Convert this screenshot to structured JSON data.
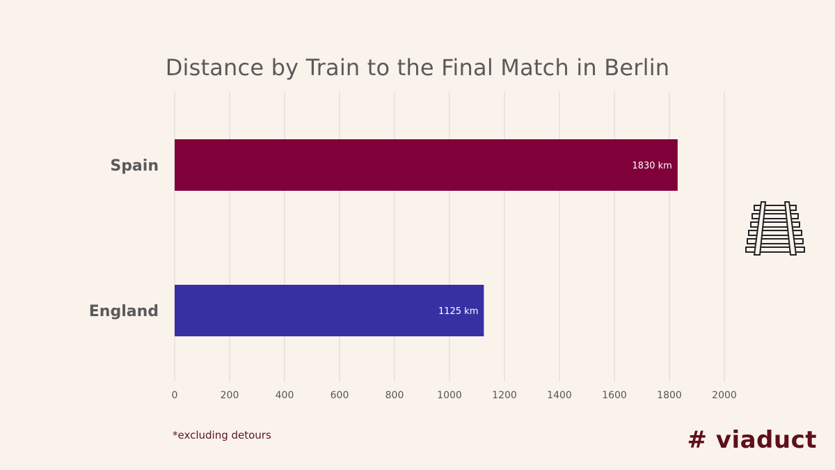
{
  "chart_data": {
    "type": "bar",
    "orientation": "horizontal",
    "title": "Distance by Train to the Final Match in Berlin",
    "categories": [
      "Spain",
      "England"
    ],
    "values": [
      1830,
      1125
    ],
    "value_labels": [
      "1830 km",
      "1125 km"
    ],
    "colors": [
      "#80003a",
      "#3730a3"
    ],
    "xlim": [
      0,
      2000
    ],
    "xticks": [
      0,
      200,
      400,
      600,
      800,
      1000,
      1200,
      1400,
      1600,
      1800,
      2000
    ],
    "grid": true
  },
  "footnote": "*excluding detours",
  "brand": "# viaduct",
  "decoration": {
    "icon": "railway-track-icon"
  }
}
